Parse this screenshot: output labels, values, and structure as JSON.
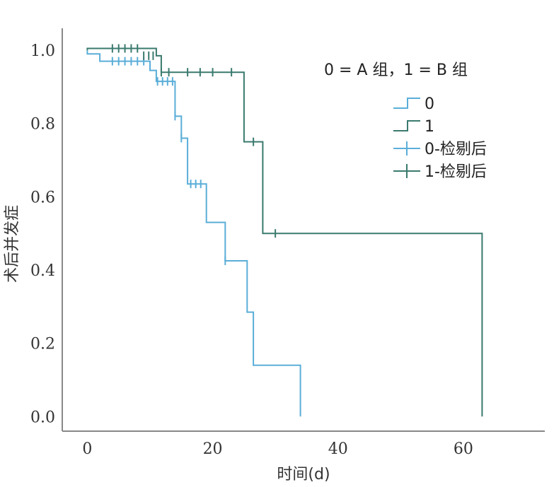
{
  "chart_data": {
    "type": "line",
    "title": "",
    "xlabel": "时间(d)",
    "ylabel": "术后并发症",
    "xlim": [
      -4,
      73
    ],
    "ylim": [
      -0.04,
      1.06
    ],
    "x_ticks": [
      0,
      20,
      40,
      60
    ],
    "y_ticks": [
      0.0,
      0.2,
      0.4,
      0.6,
      0.8,
      1.0
    ],
    "x_tick_labels": [
      "0",
      "20",
      "40",
      "60"
    ],
    "y_tick_labels": [
      "0.0",
      "0.2",
      "0.4",
      "0.6",
      "0.8",
      "1.0"
    ],
    "grid": false,
    "legend_position": "top-right",
    "legend_title": "0 = A 组，1 = B 组",
    "series": [
      {
        "name": "0",
        "color": "#5aaed8",
        "steps": [
          [
            0,
            1.0
          ],
          [
            0,
            0.99
          ],
          [
            2,
            0.99
          ],
          [
            2,
            0.97
          ],
          [
            10,
            0.97
          ],
          [
            10,
            0.945
          ],
          [
            11,
            0.945
          ],
          [
            11,
            0.915
          ],
          [
            14,
            0.915
          ],
          [
            14,
            0.82
          ],
          [
            15,
            0.82
          ],
          [
            15,
            0.76
          ],
          [
            16,
            0.76
          ],
          [
            16,
            0.635
          ],
          [
            19,
            0.635
          ],
          [
            19,
            0.53
          ],
          [
            22,
            0.53
          ],
          [
            22,
            0.425
          ],
          [
            25.5,
            0.425
          ],
          [
            25.5,
            0.285
          ],
          [
            26.5,
            0.285
          ],
          [
            26.5,
            0.14
          ],
          [
            34,
            0.14
          ],
          [
            34,
            0.0
          ]
        ],
        "censored": [
          [
            4,
            0.97
          ],
          [
            5,
            0.97
          ],
          [
            6,
            0.97
          ],
          [
            7,
            0.97
          ],
          [
            8,
            0.97
          ],
          [
            9,
            0.97
          ],
          [
            11.2,
            0.915
          ],
          [
            12,
            0.915
          ],
          [
            12.8,
            0.915
          ],
          [
            13.6,
            0.915
          ],
          [
            14,
            0.82
          ],
          [
            15,
            0.76
          ],
          [
            16.5,
            0.635
          ],
          [
            17.3,
            0.635
          ],
          [
            18.1,
            0.635
          ],
          [
            22,
            0.425
          ]
        ]
      },
      {
        "name": "1",
        "color": "#3a7a6e",
        "steps": [
          [
            0,
            1.0
          ],
          [
            0,
            1.005
          ],
          [
            11,
            1.005
          ],
          [
            11,
            0.985
          ],
          [
            11.8,
            0.985
          ],
          [
            11.8,
            0.94
          ],
          [
            25,
            0.94
          ],
          [
            25,
            0.75
          ],
          [
            28,
            0.75
          ],
          [
            28,
            0.5
          ],
          [
            63,
            0.5
          ],
          [
            63,
            0.0
          ]
        ],
        "censored": [
          [
            4,
            1.005
          ],
          [
            5,
            1.005
          ],
          [
            6,
            1.005
          ],
          [
            7,
            1.005
          ],
          [
            8,
            1.005
          ],
          [
            9,
            0.985
          ],
          [
            9.8,
            0.985
          ],
          [
            10.5,
            0.985
          ],
          [
            11.8,
            0.94
          ],
          [
            13,
            0.94
          ],
          [
            16,
            0.94
          ],
          [
            18,
            0.94
          ],
          [
            20,
            0.94
          ],
          [
            23,
            0.94
          ],
          [
            26.5,
            0.75
          ],
          [
            30,
            0.5
          ]
        ]
      }
    ],
    "legend": [
      {
        "label": "0",
        "kind": "line",
        "color": "#5aaed8"
      },
      {
        "label": "1",
        "kind": "line",
        "color": "#3a7a6e"
      },
      {
        "label": "0-检剔后",
        "kind": "censor",
        "color": "#5aaed8"
      },
      {
        "label": "1-检剔后",
        "kind": "censor",
        "color": "#3a7a6e"
      }
    ]
  }
}
